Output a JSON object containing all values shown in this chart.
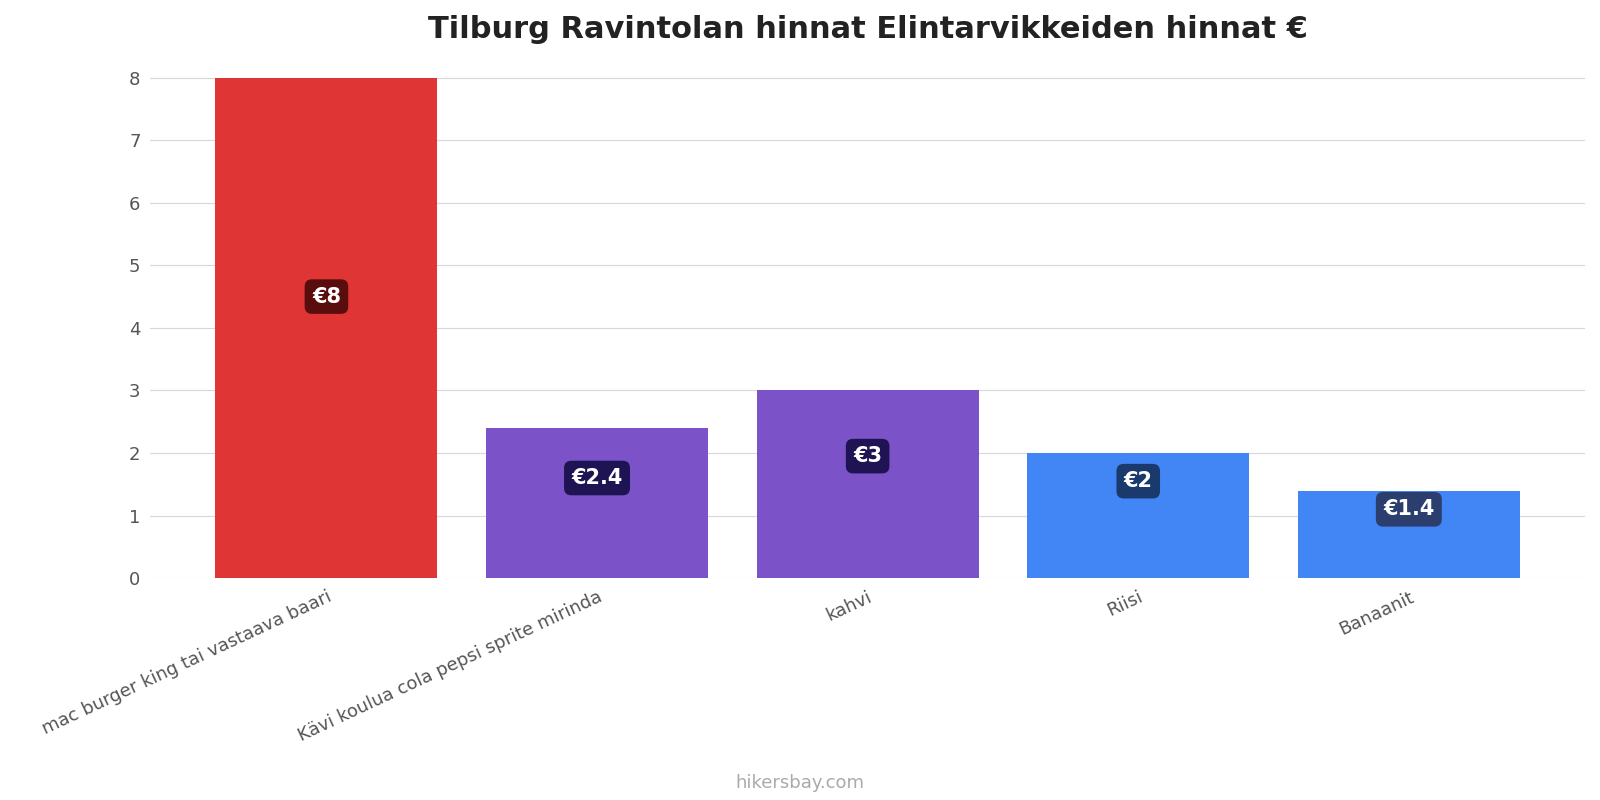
{
  "title": "Tilburg Ravintolan hinnat Elintarvikkeiden hinnat €",
  "categories": [
    "mac burger king tai vastaava baari",
    "Kävi koulua cola pepsi sprite mirinda",
    "kahvi",
    "Riisi",
    "Banaanit"
  ],
  "values": [
    8,
    2.4,
    3,
    2,
    1.4
  ],
  "bar_colors": [
    "#e03535",
    "#7b52c8",
    "#7b52c8",
    "#4285f4",
    "#4285f4"
  ],
  "label_bg_colors": [
    "#5a0d0d",
    "#1e1454",
    "#1e1454",
    "#1a3a6e",
    "#2c3e6e"
  ],
  "labels": [
    "€8",
    "€2.4",
    "€3",
    "€2",
    "€1.4"
  ],
  "label_y_positions": [
    4.5,
    1.6,
    1.95,
    1.55,
    1.1
  ],
  "ylim": [
    0,
    8.3
  ],
  "yticks": [
    0,
    1,
    2,
    3,
    4,
    5,
    6,
    7,
    8
  ],
  "background_color": "#ffffff",
  "grid_color": "#d8d8d8",
  "footer": "hikersbay.com",
  "title_fontsize": 22,
  "label_fontsize": 15,
  "tick_fontsize": 13,
  "footer_fontsize": 13,
  "bar_width": 0.82
}
